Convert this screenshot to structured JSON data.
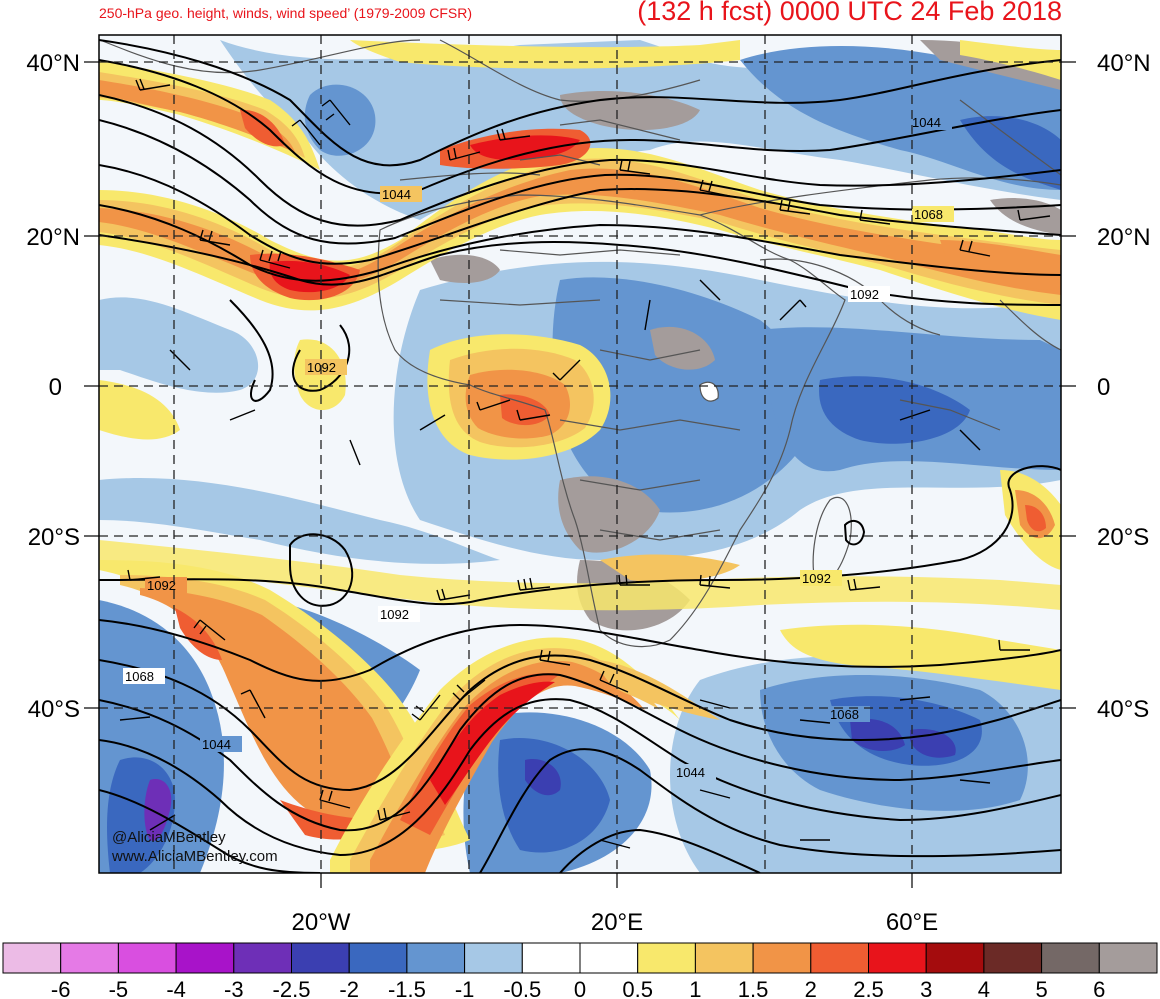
{
  "header": {
    "left_title": "250-hPa geo. height, winds, wind speed’ (1979-2009 CFSR)",
    "right_title": "(132 h fcst) 0000 UTC 24 Feb 2018"
  },
  "axes": {
    "lat_labels": [
      "40°N",
      "20°N",
      "0",
      "20°S",
      "40°S"
    ],
    "lon_labels": [
      "20°W",
      "20°E",
      "60°E"
    ]
  },
  "contour_labels": [
    "1044",
    "1068",
    "1092",
    "1092",
    "1092",
    "1092",
    "1068",
    "1044",
    "1068",
    "1044",
    "1044",
    "1092"
  ],
  "colorbar": {
    "ticks": [
      "-6",
      "-5",
      "-4",
      "-3",
      "-2.5",
      "-2",
      "-1.5",
      "-1",
      "-0.5",
      "0",
      "0.5",
      "1",
      "1.5",
      "2",
      "2.5",
      "3",
      "4",
      "5",
      "6"
    ],
    "colors": [
      "#ecbbe6",
      "#e57ae6",
      "#d94fe0",
      "#a813c9",
      "#6e2fb7",
      "#3b3fb1",
      "#3a68bf",
      "#6495d0",
      "#a6c8e6",
      "#ffffff",
      "#ffffff",
      "#f8e86c",
      "#f4c460",
      "#f19447",
      "#ef5d32",
      "#e8141b",
      "#a40c0d",
      "#6b2a26",
      "#746866",
      "#a49c9b"
    ]
  },
  "credits": {
    "line1": "@AliciaMBentley",
    "line2": "www.AliciaMBentley.com"
  }
}
